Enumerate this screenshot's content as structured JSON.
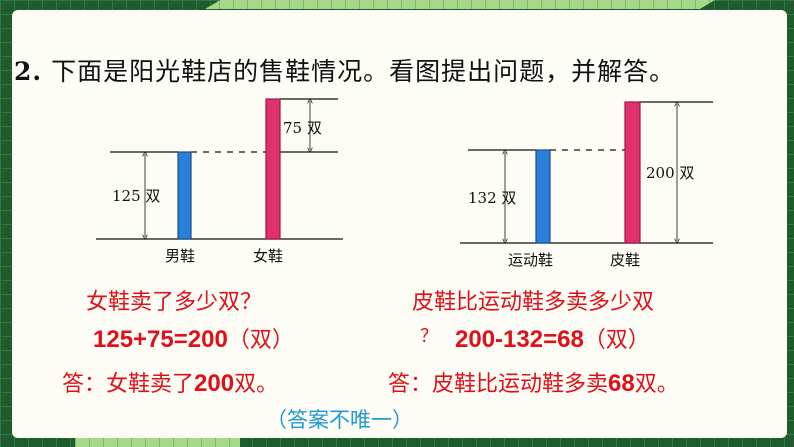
{
  "title": {
    "number": "2.",
    "text": "下面是阳光鞋店的售鞋情况。看图提出问题，并解答。"
  },
  "diagram_left": {
    "bar1_label": "男鞋",
    "bar2_label": "女鞋",
    "bar1_value": "125 双",
    "diff_value": "75 双",
    "bar1_color": "#2a7fd9",
    "bar2_color": "#e0306e"
  },
  "diagram_right": {
    "bar1_label": "运动鞋",
    "bar2_label": "皮鞋",
    "bar1_value": "132 双",
    "bar2_value": "200 双"
  },
  "solution_left": {
    "question": "女鞋卖了多少双？",
    "equation": "125+75=200",
    "unit": "（双）",
    "answer_prefix": "答：女鞋卖了",
    "answer_num": "200",
    "answer_suffix": "双。"
  },
  "solution_right": {
    "question": "皮鞋比运动鞋多卖多少双",
    "question_end": "？",
    "equation": "200-132=68",
    "unit": "（双）",
    "answer_prefix": "答：皮鞋比运动鞋多卖",
    "answer_num": "68",
    "answer_suffix": "双。"
  },
  "note": "（答案不唯一）"
}
